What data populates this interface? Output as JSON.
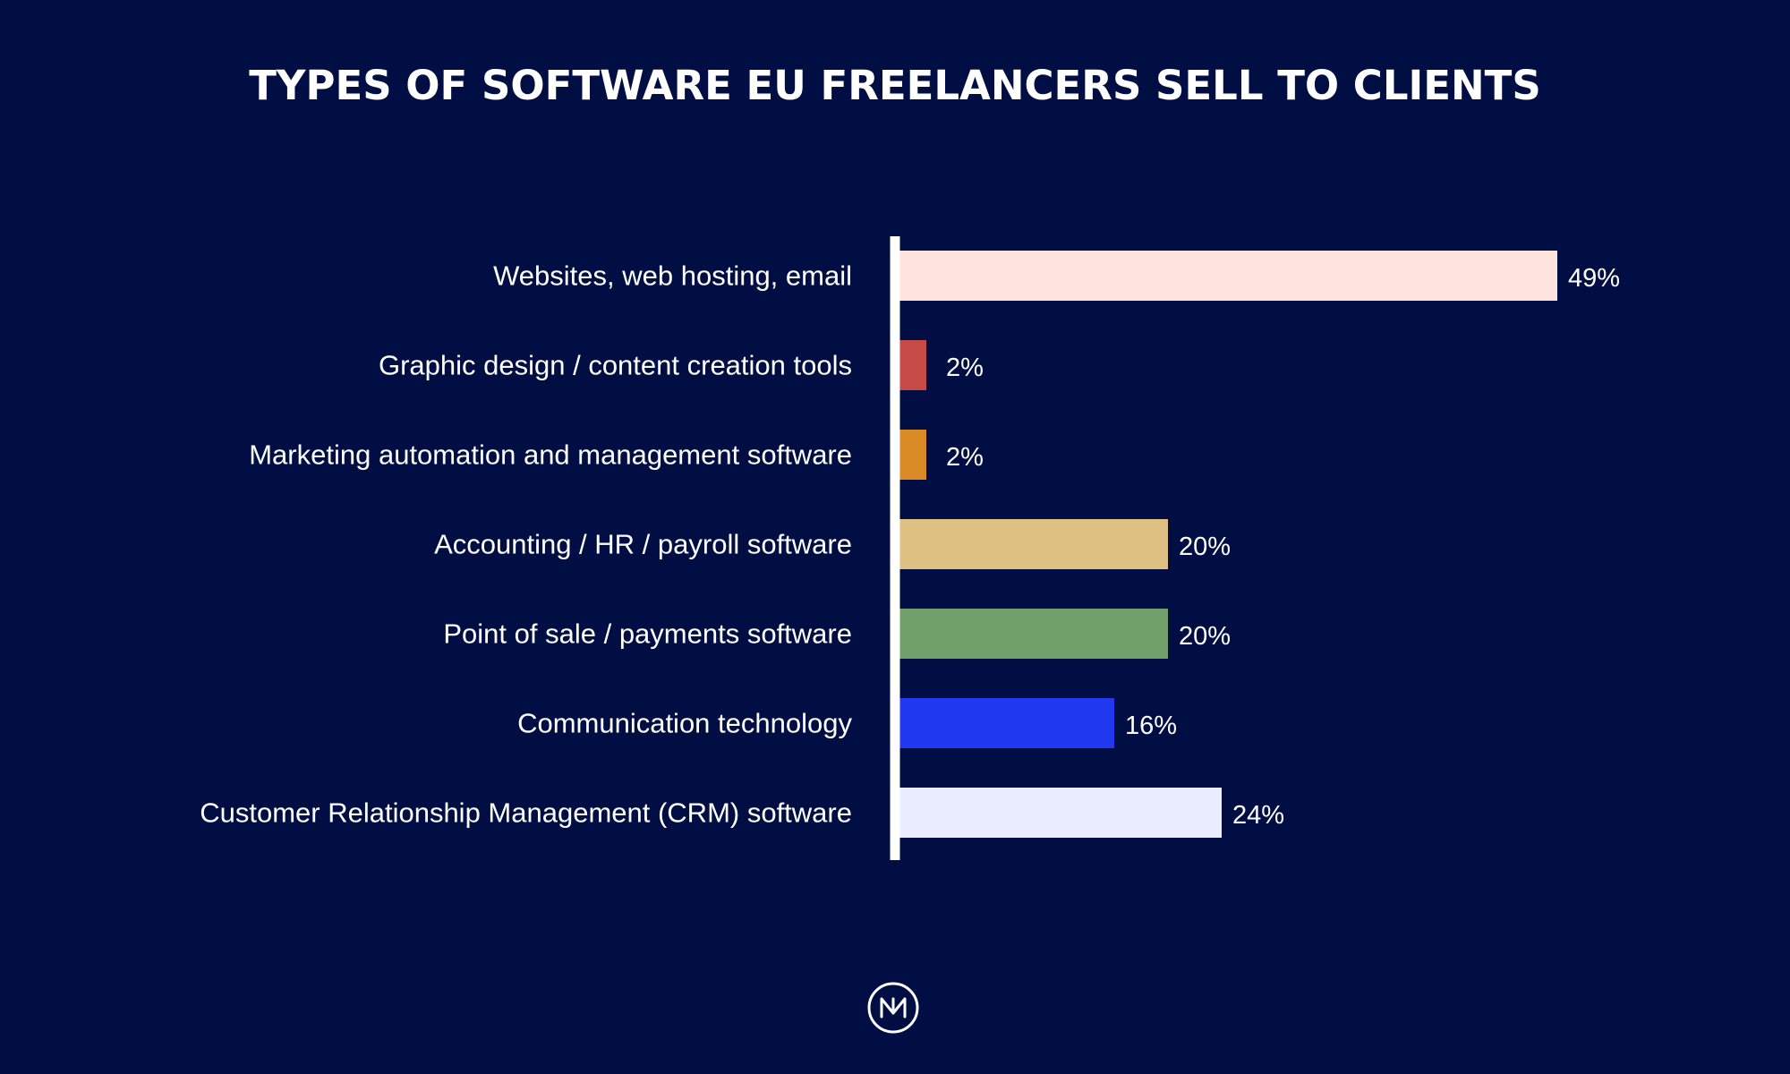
{
  "colors": {
    "background": "#010e43",
    "axis": "#ffffff",
    "text": "#ffffff"
  },
  "icons": {
    "logo": "nm-logo-icon"
  },
  "chart_data": {
    "type": "bar",
    "orientation": "horizontal",
    "title": "TYPES OF SOFTWARE EU FREELANCERS SELL TO CLIENTS",
    "xlabel": "",
    "ylabel": "",
    "grid": false,
    "xlim": [
      0,
      49
    ],
    "categories": [
      "Websites, web hosting, email",
      "Graphic design / content creation tools",
      "Marketing automation and management software",
      "Accounting / HR / payroll software",
      "Point of sale / payments software",
      "Communication technology",
      "Customer Relationship Management (CRM) software"
    ],
    "values": [
      49,
      2,
      2,
      20,
      20,
      16,
      24
    ],
    "value_labels": [
      "49%",
      "2%",
      "2%",
      "20%",
      "20%",
      "16%",
      "24%"
    ],
    "bar_colors": [
      "#ffe3dc",
      "#c64a46",
      "#d98a24",
      "#dfc083",
      "#72a06b",
      "#2039f0",
      "#e9edff"
    ]
  }
}
